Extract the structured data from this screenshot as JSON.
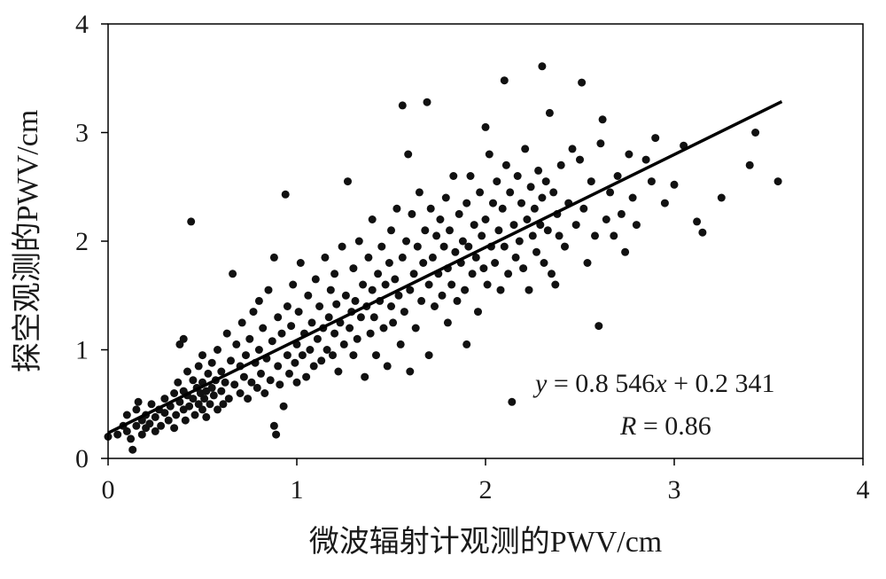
{
  "chart_data": {
    "type": "scatter",
    "xlabel": "微波辐射计观测的PWV/cm",
    "ylabel": "探空观测的PWV/cm",
    "xlim": [
      0,
      4
    ],
    "ylim": [
      0,
      4
    ],
    "xticks": [
      "0",
      "1",
      "2",
      "3",
      "4"
    ],
    "yticks": [
      "0",
      "1",
      "2",
      "3",
      "4"
    ],
    "grid": false,
    "marker_color": "#111111",
    "fit_line": {
      "slope": 0.8546,
      "intercept": 0.2341,
      "x_range": [
        0,
        3.57
      ],
      "color": "#000000"
    },
    "annotation": {
      "eq_y": "y",
      "eq_mid": " = 0.8 546",
      "eq_x": "x",
      "eq_tail": " + 0.2 341",
      "r_label": "R",
      "r_value": " = 0.86"
    },
    "points": [
      [
        0.0,
        0.2
      ],
      [
        0.05,
        0.22
      ],
      [
        0.08,
        0.3
      ],
      [
        0.1,
        0.25
      ],
      [
        0.1,
        0.4
      ],
      [
        0.12,
        0.18
      ],
      [
        0.13,
        0.08
      ],
      [
        0.15,
        0.3
      ],
      [
        0.15,
        0.45
      ],
      [
        0.16,
        0.52
      ],
      [
        0.18,
        0.35
      ],
      [
        0.18,
        0.22
      ],
      [
        0.2,
        0.28
      ],
      [
        0.2,
        0.4
      ],
      [
        0.22,
        0.32
      ],
      [
        0.23,
        0.5
      ],
      [
        0.25,
        0.38
      ],
      [
        0.25,
        0.25
      ],
      [
        0.27,
        0.45
      ],
      [
        0.28,
        0.3
      ],
      [
        0.3,
        0.42
      ],
      [
        0.3,
        0.55
      ],
      [
        0.32,
        0.35
      ],
      [
        0.33,
        0.48
      ],
      [
        0.35,
        0.6
      ],
      [
        0.35,
        0.28
      ],
      [
        0.36,
        0.4
      ],
      [
        0.37,
        0.7
      ],
      [
        0.38,
        0.52
      ],
      [
        0.38,
        1.05
      ],
      [
        0.4,
        0.45
      ],
      [
        0.4,
        0.62
      ],
      [
        0.4,
        1.1
      ],
      [
        0.41,
        0.35
      ],
      [
        0.42,
        0.58
      ],
      [
        0.42,
        0.8
      ],
      [
        0.43,
        0.48
      ],
      [
        0.44,
        2.18
      ],
      [
        0.45,
        0.55
      ],
      [
        0.45,
        0.72
      ],
      [
        0.46,
        0.4
      ],
      [
        0.47,
        0.65
      ],
      [
        0.48,
        0.5
      ],
      [
        0.48,
        0.85
      ],
      [
        0.49,
        0.6
      ],
      [
        0.5,
        0.45
      ],
      [
        0.5,
        0.7
      ],
      [
        0.5,
        0.95
      ],
      [
        0.51,
        0.55
      ],
      [
        0.52,
        0.62
      ],
      [
        0.52,
        0.38
      ],
      [
        0.53,
        0.78
      ],
      [
        0.54,
        0.5
      ],
      [
        0.55,
        0.65
      ],
      [
        0.55,
        0.88
      ],
      [
        0.56,
        0.58
      ],
      [
        0.57,
        0.72
      ],
      [
        0.58,
        0.45
      ],
      [
        0.58,
        1.0
      ],
      [
        0.6,
        0.62
      ],
      [
        0.6,
        0.8
      ],
      [
        0.61,
        0.5
      ],
      [
        0.62,
        0.7
      ],
      [
        0.63,
        1.15
      ],
      [
        0.64,
        0.55
      ],
      [
        0.65,
        0.9
      ],
      [
        0.66,
        1.7
      ],
      [
        0.67,
        0.68
      ],
      [
        0.68,
        1.05
      ],
      [
        0.7,
        0.6
      ],
      [
        0.7,
        0.85
      ],
      [
        0.71,
        1.25
      ],
      [
        0.72,
        0.75
      ],
      [
        0.73,
        0.95
      ],
      [
        0.74,
        0.55
      ],
      [
        0.75,
        1.1
      ],
      [
        0.76,
        0.7
      ],
      [
        0.77,
        1.35
      ],
      [
        0.78,
        0.88
      ],
      [
        0.79,
        0.65
      ],
      [
        0.8,
        1.0
      ],
      [
        0.8,
        1.45
      ],
      [
        0.81,
        0.78
      ],
      [
        0.82,
        1.2
      ],
      [
        0.83,
        0.6
      ],
      [
        0.84,
        0.92
      ],
      [
        0.85,
        1.55
      ],
      [
        0.86,
        0.72
      ],
      [
        0.87,
        1.08
      ],
      [
        0.88,
        1.85
      ],
      [
        0.88,
        0.3
      ],
      [
        0.89,
        0.22
      ],
      [
        0.9,
        0.85
      ],
      [
        0.9,
        1.3
      ],
      [
        0.91,
        0.68
      ],
      [
        0.92,
        1.15
      ],
      [
        0.93,
        0.48
      ],
      [
        0.94,
        2.43
      ],
      [
        0.95,
        0.95
      ],
      [
        0.95,
        1.4
      ],
      [
        0.96,
        0.78
      ],
      [
        0.97,
        1.22
      ],
      [
        0.98,
        1.6
      ],
      [
        0.99,
        0.88
      ],
      [
        1.0,
        1.05
      ],
      [
        1.0,
        0.7
      ],
      [
        1.01,
        1.35
      ],
      [
        1.02,
        1.8
      ],
      [
        1.03,
        0.95
      ],
      [
        1.04,
        1.15
      ],
      [
        1.05,
        0.75
      ],
      [
        1.06,
        1.5
      ],
      [
        1.07,
        1.0
      ],
      [
        1.08,
        1.25
      ],
      [
        1.09,
        0.85
      ],
      [
        1.1,
        1.65
      ],
      [
        1.11,
        1.1
      ],
      [
        1.12,
        1.4
      ],
      [
        1.13,
        0.9
      ],
      [
        1.14,
        1.2
      ],
      [
        1.15,
        1.85
      ],
      [
        1.16,
        1.0
      ],
      [
        1.17,
        1.3
      ],
      [
        1.18,
        1.55
      ],
      [
        1.19,
        0.95
      ],
      [
        1.2,
        1.15
      ],
      [
        1.2,
        1.7
      ],
      [
        1.21,
        1.42
      ],
      [
        1.22,
        0.8
      ],
      [
        1.23,
        1.25
      ],
      [
        1.24,
        1.95
      ],
      [
        1.25,
        1.05
      ],
      [
        1.26,
        1.5
      ],
      [
        1.27,
        2.55
      ],
      [
        1.28,
        1.2
      ],
      [
        1.29,
        1.35
      ],
      [
        1.3,
        0.95
      ],
      [
        1.3,
        1.75
      ],
      [
        1.31,
        1.45
      ],
      [
        1.32,
        1.1
      ],
      [
        1.33,
        2.0
      ],
      [
        1.34,
        1.3
      ],
      [
        1.35,
        1.6
      ],
      [
        1.36,
        0.75
      ],
      [
        1.37,
        1.4
      ],
      [
        1.38,
        1.85
      ],
      [
        1.39,
        1.15
      ],
      [
        1.4,
        1.55
      ],
      [
        1.4,
        2.2
      ],
      [
        1.41,
        1.3
      ],
      [
        1.42,
        0.95
      ],
      [
        1.43,
        1.7
      ],
      [
        1.44,
        1.45
      ],
      [
        1.45,
        1.95
      ],
      [
        1.46,
        1.2
      ],
      [
        1.47,
        1.6
      ],
      [
        1.48,
        0.85
      ],
      [
        1.49,
        1.8
      ],
      [
        1.5,
        1.4
      ],
      [
        1.5,
        2.1
      ],
      [
        1.51,
        1.25
      ],
      [
        1.52,
        1.65
      ],
      [
        1.53,
        2.3
      ],
      [
        1.54,
        1.5
      ],
      [
        1.55,
        1.05
      ],
      [
        1.56,
        1.85
      ],
      [
        1.56,
        3.25
      ],
      [
        1.57,
        1.35
      ],
      [
        1.58,
        2.0
      ],
      [
        1.59,
        2.8
      ],
      [
        1.6,
        1.55
      ],
      [
        1.6,
        0.8
      ],
      [
        1.61,
        2.25
      ],
      [
        1.62,
        1.7
      ],
      [
        1.63,
        1.2
      ],
      [
        1.64,
        1.95
      ],
      [
        1.65,
        2.45
      ],
      [
        1.66,
        1.45
      ],
      [
        1.67,
        1.8
      ],
      [
        1.68,
        2.1
      ],
      [
        1.69,
        3.28
      ],
      [
        1.7,
        1.6
      ],
      [
        1.7,
        0.95
      ],
      [
        1.71,
        2.3
      ],
      [
        1.72,
        1.85
      ],
      [
        1.73,
        1.4
      ],
      [
        1.74,
        2.05
      ],
      [
        1.75,
        1.7
      ],
      [
        1.76,
        2.2
      ],
      [
        1.77,
        1.5
      ],
      [
        1.78,
        1.95
      ],
      [
        1.79,
        2.4
      ],
      [
        1.8,
        1.75
      ],
      [
        1.8,
        1.25
      ],
      [
        1.81,
        2.1
      ],
      [
        1.82,
        1.6
      ],
      [
        1.83,
        2.6
      ],
      [
        1.84,
        1.9
      ],
      [
        1.85,
        1.45
      ],
      [
        1.86,
        2.25
      ],
      [
        1.87,
        1.8
      ],
      [
        1.88,
        2.0
      ],
      [
        1.89,
        1.55
      ],
      [
        1.9,
        2.35
      ],
      [
        1.9,
        1.05
      ],
      [
        1.91,
        1.95
      ],
      [
        1.92,
        2.6
      ],
      [
        1.93,
        1.7
      ],
      [
        1.94,
        2.15
      ],
      [
        1.95,
        1.85
      ],
      [
        1.96,
        1.35
      ],
      [
        1.97,
        2.45
      ],
      [
        1.98,
        2.05
      ],
      [
        1.99,
        1.75
      ],
      [
        2.0,
        2.2
      ],
      [
        2.0,
        3.05
      ],
      [
        2.01,
        1.6
      ],
      [
        2.02,
        2.8
      ],
      [
        2.03,
        1.95
      ],
      [
        2.04,
        2.35
      ],
      [
        2.05,
        1.8
      ],
      [
        2.06,
        2.55
      ],
      [
        2.07,
        2.1
      ],
      [
        2.08,
        1.55
      ],
      [
        2.09,
        2.3
      ],
      [
        2.1,
        3.48
      ],
      [
        2.1,
        1.95
      ],
      [
        2.11,
        2.7
      ],
      [
        2.12,
        1.7
      ],
      [
        2.13,
        2.45
      ],
      [
        2.14,
        0.52
      ],
      [
        2.15,
        2.15
      ],
      [
        2.16,
        1.85
      ],
      [
        2.17,
        2.6
      ],
      [
        2.18,
        2.0
      ],
      [
        2.19,
        2.35
      ],
      [
        2.2,
        1.75
      ],
      [
        2.21,
        2.85
      ],
      [
        2.22,
        2.2
      ],
      [
        2.23,
        1.55
      ],
      [
        2.24,
        2.5
      ],
      [
        2.25,
        2.05
      ],
      [
        2.26,
        2.3
      ],
      [
        2.27,
        1.9
      ],
      [
        2.28,
        2.65
      ],
      [
        2.29,
        2.15
      ],
      [
        2.3,
        3.61
      ],
      [
        2.3,
        2.4
      ],
      [
        2.31,
        1.8
      ],
      [
        2.32,
        2.55
      ],
      [
        2.33,
        2.1
      ],
      [
        2.34,
        3.18
      ],
      [
        2.35,
        1.7
      ],
      [
        2.36,
        2.45
      ],
      [
        2.37,
        1.6
      ],
      [
        2.38,
        2.25
      ],
      [
        2.39,
        2.05
      ],
      [
        2.4,
        2.7
      ],
      [
        2.42,
        1.95
      ],
      [
        2.44,
        2.35
      ],
      [
        2.46,
        2.85
      ],
      [
        2.48,
        2.15
      ],
      [
        2.5,
        2.75
      ],
      [
        2.51,
        3.46
      ],
      [
        2.52,
        2.3
      ],
      [
        2.54,
        1.8
      ],
      [
        2.56,
        2.55
      ],
      [
        2.58,
        2.05
      ],
      [
        2.6,
        1.22
      ],
      [
        2.61,
        2.9
      ],
      [
        2.62,
        3.12
      ],
      [
        2.64,
        2.2
      ],
      [
        2.66,
        2.45
      ],
      [
        2.68,
        2.05
      ],
      [
        2.7,
        2.6
      ],
      [
        2.72,
        2.25
      ],
      [
        2.74,
        1.9
      ],
      [
        2.76,
        2.8
      ],
      [
        2.78,
        2.4
      ],
      [
        2.8,
        2.15
      ],
      [
        2.85,
        2.75
      ],
      [
        2.88,
        2.55
      ],
      [
        2.9,
        2.95
      ],
      [
        2.95,
        2.35
      ],
      [
        3.0,
        2.52
      ],
      [
        3.05,
        2.88
      ],
      [
        3.12,
        2.18
      ],
      [
        3.15,
        2.08
      ],
      [
        3.25,
        2.4
      ],
      [
        3.4,
        2.7
      ],
      [
        3.43,
        3.0
      ],
      [
        3.55,
        2.55
      ]
    ]
  }
}
